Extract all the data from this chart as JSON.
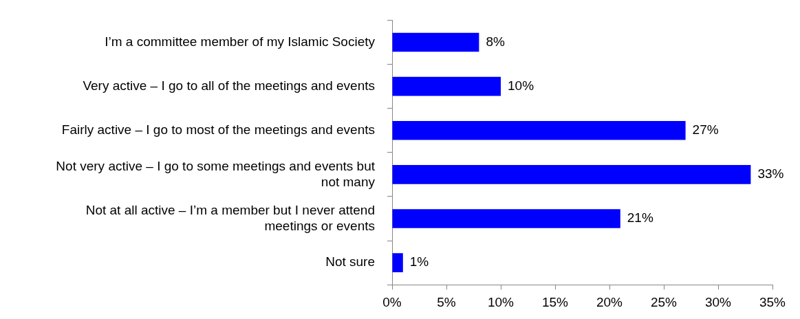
{
  "chart_data": {
    "type": "bar",
    "orientation": "horizontal",
    "categories": [
      "I’m a committee member of my Islamic Society",
      "Very active – I go to all of the meetings and events",
      "Fairly active – I go to most of the meetings and events",
      "Not very active – I go to some meetings and events but not many",
      "Not at all active – I’m a member but I never attend meetings or events",
      "Not sure"
    ],
    "values": [
      8,
      10,
      27,
      33,
      21,
      1
    ],
    "value_labels": [
      "8%",
      "10%",
      "27%",
      "33%",
      "21%",
      "1%"
    ],
    "color": "#0000ff",
    "xlim": [
      0,
      35
    ],
    "xticks": [
      {
        "value": 0,
        "label": "0%"
      },
      {
        "value": 5,
        "label": "5%"
      },
      {
        "value": 10,
        "label": "10%"
      },
      {
        "value": 15,
        "label": "15%"
      },
      {
        "value": 20,
        "label": "20%"
      },
      {
        "value": 25,
        "label": "25%"
      },
      {
        "value": 30,
        "label": "30%"
      },
      {
        "value": 35,
        "label": "35%"
      }
    ],
    "legend": false
  }
}
